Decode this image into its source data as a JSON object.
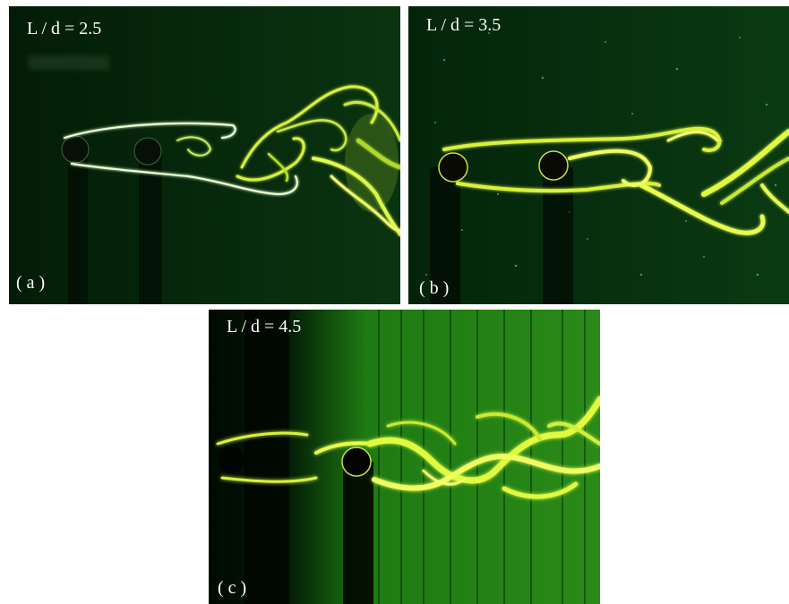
{
  "figure": {
    "panels": [
      {
        "id": "a",
        "ratio_label": "L / d = 2.5",
        "tag": "( a )"
      },
      {
        "id": "b",
        "ratio_label": "L / d = 3.5",
        "tag": "( b )"
      },
      {
        "id": "c",
        "ratio_label": "L / d = 4.5",
        "tag": "( c )"
      }
    ]
  },
  "colors": {
    "dye": "#d8f23a",
    "dye_bright": "#f4ff70",
    "background_dark": "#021a06",
    "background_green": "#1c6e10",
    "text": "#ffffff"
  }
}
